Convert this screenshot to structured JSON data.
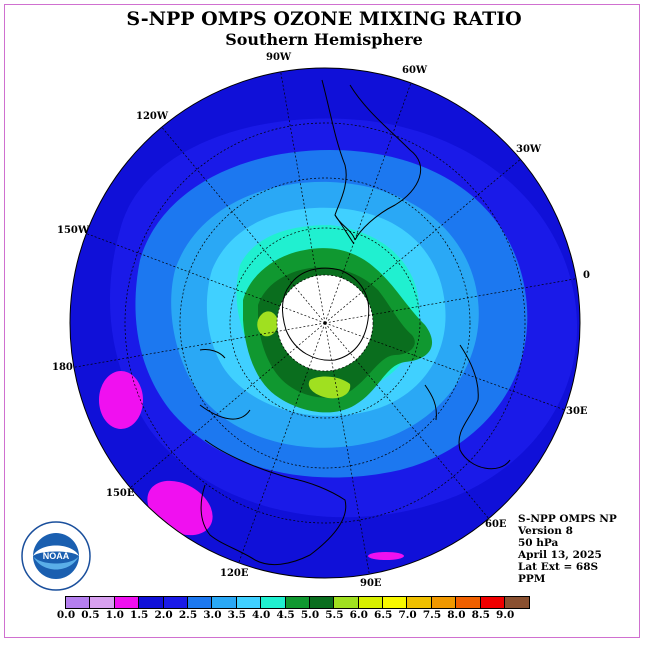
{
  "header": {
    "title": "S-NPP OMPS OZONE MIXING RATIO",
    "subtitle": "Southern Hemisphere"
  },
  "map": {
    "projection": "south polar stereographic",
    "longitude_labels": [
      "90W",
      "60W",
      "120W",
      "30W",
      "150W",
      "0",
      "180",
      "30E",
      "150E",
      "60E",
      "120E",
      "90E"
    ],
    "features": [
      "ozone mixing ratio contours",
      "coastlines",
      "latitude circles",
      "longitude meridians",
      "polar no-data cap"
    ]
  },
  "info": {
    "instrument": "S-NPP OMPS NP",
    "version": "Version 8",
    "level": "50 hPa",
    "date": "April 13, 2025",
    "lat_ext": "Lat Ext = 68S",
    "units": "PPM"
  },
  "logo": {
    "text": "NOAA",
    "ring_text": "NATIONAL OCEANIC AND ATMOSPHERIC ADMINISTRATION · U.S. DEPARTMENT OF COMMERCE"
  },
  "colorbar": {
    "ticks": [
      "0.0",
      "0.5",
      "1.0",
      "1.5",
      "2.0",
      "2.5",
      "3.0",
      "3.5",
      "4.0",
      "4.5",
      "5.0",
      "5.5",
      "6.0",
      "6.5",
      "7.0",
      "7.5",
      "8.0",
      "8.5",
      "9.0"
    ],
    "colors": [
      "#b57fef",
      "#d8a0f0",
      "#f010f0",
      "#1010d8",
      "#1a1ae8",
      "#1c78f0",
      "#2aa8f5",
      "#40d0ff",
      "#20f0d0",
      "#109830",
      "#0a6e1e",
      "#a0e020",
      "#d8f000",
      "#f8f800",
      "#f0c000",
      "#f09800",
      "#f06000",
      "#f00000",
      "#8a5030"
    ],
    "values_ppm": [
      0.0,
      0.5,
      1.0,
      1.5,
      2.0,
      2.5,
      3.0,
      3.5,
      4.0,
      4.5,
      5.0,
      5.5,
      6.0,
      6.5,
      7.0,
      7.5,
      8.0,
      8.5,
      9.0
    ]
  }
}
